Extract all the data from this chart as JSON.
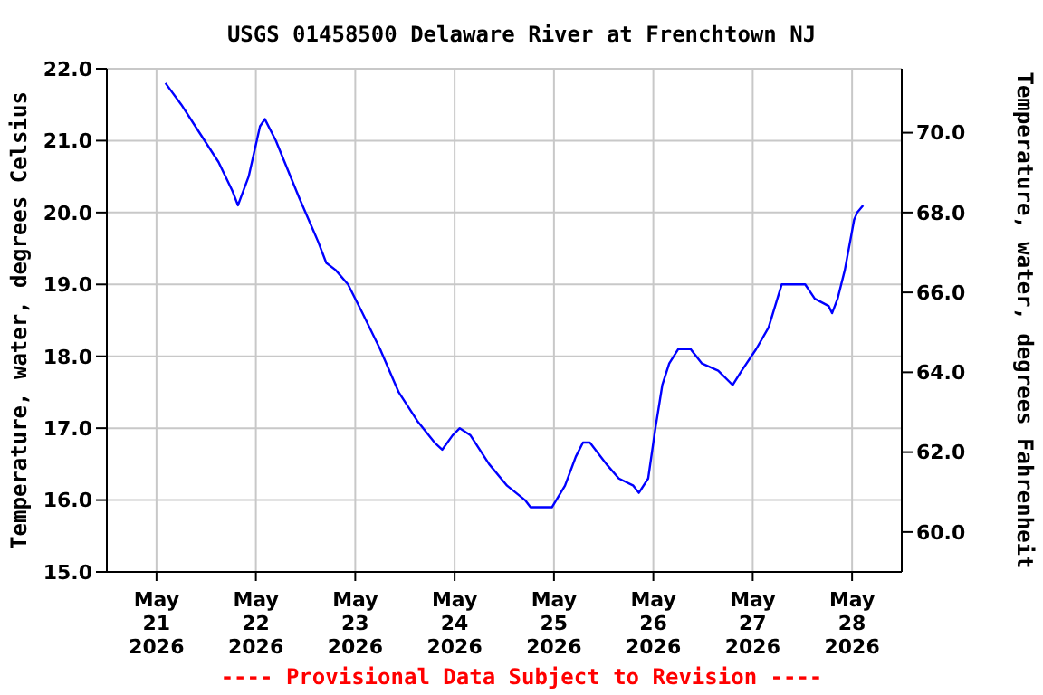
{
  "chart_data": {
    "type": "line",
    "title": "USGS 01458500 Delaware River at Frenchtown NJ",
    "ylabel": "Temperature, water, degrees Celsius",
    "y2label": "Temperature, water, degrees Fahrenheit",
    "x": [
      "2026-05-21T02:10",
      "2026-05-21T06:00",
      "2026-05-21T10:30",
      "2026-05-21T15:00",
      "2026-05-21T18:20",
      "2026-05-21T19:40",
      "2026-05-21T22:15",
      "2026-05-22T01:00",
      "2026-05-22T02:10",
      "2026-05-22T04:50",
      "2026-05-22T10:30",
      "2026-05-22T15:00",
      "2026-05-22T17:00",
      "2026-05-22T19:15",
      "2026-05-22T22:15",
      "2026-05-23T01:45",
      "2026-05-23T06:00",
      "2026-05-23T10:30",
      "2026-05-23T15:00",
      "2026-05-23T19:10",
      "2026-05-23T21:00",
      "2026-05-23T23:30",
      "2026-05-24T01:15",
      "2026-05-24T03:50",
      "2026-05-24T08:20",
      "2026-05-24T12:40",
      "2026-05-24T17:00",
      "2026-05-24T18:20",
      "2026-05-24T23:30",
      "2026-05-25T02:40",
      "2026-05-25T05:15",
      "2026-05-25T07:00",
      "2026-05-25T08:40",
      "2026-05-25T12:40",
      "2026-05-25T15:40",
      "2026-05-25T19:10",
      "2026-05-25T20:30",
      "2026-05-25T22:45",
      "2026-05-26T00:30",
      "2026-05-26T02:10",
      "2026-05-26T03:50",
      "2026-05-26T06:00",
      "2026-05-26T09:00",
      "2026-05-26T11:45",
      "2026-05-26T15:40",
      "2026-05-26T19:10",
      "2026-05-26T21:20",
      "2026-05-27T00:50",
      "2026-05-27T03:50",
      "2026-05-27T07:00",
      "2026-05-27T08:40",
      "2026-05-27T12:40",
      "2026-05-27T15:00",
      "2026-05-27T18:20",
      "2026-05-27T19:10",
      "2026-05-27T20:30",
      "2026-05-27T22:15",
      "2026-05-28T00:30",
      "2026-05-28T01:15",
      "2026-05-28T02:40"
    ],
    "series": [
      {
        "color": "#0000ff",
        "values": [
          21.8,
          21.5,
          21.1,
          20.7,
          20.3,
          20.1,
          20.5,
          21.2,
          21.3,
          21.0,
          20.2,
          19.6,
          19.3,
          19.2,
          19.0,
          18.6,
          18.1,
          17.5,
          17.1,
          16.8,
          16.7,
          16.9,
          17.0,
          16.9,
          16.5,
          16.2,
          16.0,
          15.9,
          15.9,
          16.2,
          16.6,
          16.8,
          16.8,
          16.5,
          16.3,
          16.2,
          16.1,
          16.3,
          17.0,
          17.6,
          17.9,
          18.1,
          18.1,
          17.9,
          17.8,
          17.6,
          17.8,
          18.1,
          18.4,
          19.0,
          19.0,
          19.0,
          18.8,
          18.7,
          18.6,
          18.8,
          19.2,
          19.9,
          20.0,
          20.1
        ]
      }
    ],
    "xlim": [
      "2026-05-20T12:00",
      "2026-05-28T12:00"
    ],
    "xticks": [
      {
        "value": "2026-05-21",
        "label": "May 21 2026"
      },
      {
        "value": "2026-05-22",
        "label": "May 22 2026"
      },
      {
        "value": "2026-05-23",
        "label": "May 23 2026"
      },
      {
        "value": "2026-05-24",
        "label": "May 24 2026"
      },
      {
        "value": "2026-05-25",
        "label": "May 25 2026"
      },
      {
        "value": "2026-05-26",
        "label": "May 26 2026"
      },
      {
        "value": "2026-05-27",
        "label": "May 27 2026"
      },
      {
        "value": "2026-05-28",
        "label": "May 28 2026"
      }
    ],
    "ylim": [
      15.0,
      22.0
    ],
    "yticks": [
      {
        "value": 15,
        "label": "15.0"
      },
      {
        "value": 16,
        "label": "16.0"
      },
      {
        "value": 17,
        "label": "17.0"
      },
      {
        "value": 18,
        "label": "18.0"
      },
      {
        "value": 19,
        "label": "19.0"
      },
      {
        "value": 20,
        "label": "20.0"
      },
      {
        "value": 21,
        "label": "21.0"
      },
      {
        "value": 22,
        "label": "22.0"
      }
    ],
    "y2lim": [
      59.0,
      71.6
    ],
    "y2ticks": [
      {
        "value": 60,
        "label": "60.0"
      },
      {
        "value": 62,
        "label": "62.0"
      },
      {
        "value": 64,
        "label": "64.0"
      },
      {
        "value": 66,
        "label": "66.0"
      },
      {
        "value": 68,
        "label": "68.0"
      },
      {
        "value": 70,
        "label": "70.0"
      }
    ],
    "grid": true,
    "legend": false,
    "marker": "none",
    "line_style": "solid",
    "annotations": [
      "---- Provisional Data Subject to Revision ----"
    ]
  }
}
